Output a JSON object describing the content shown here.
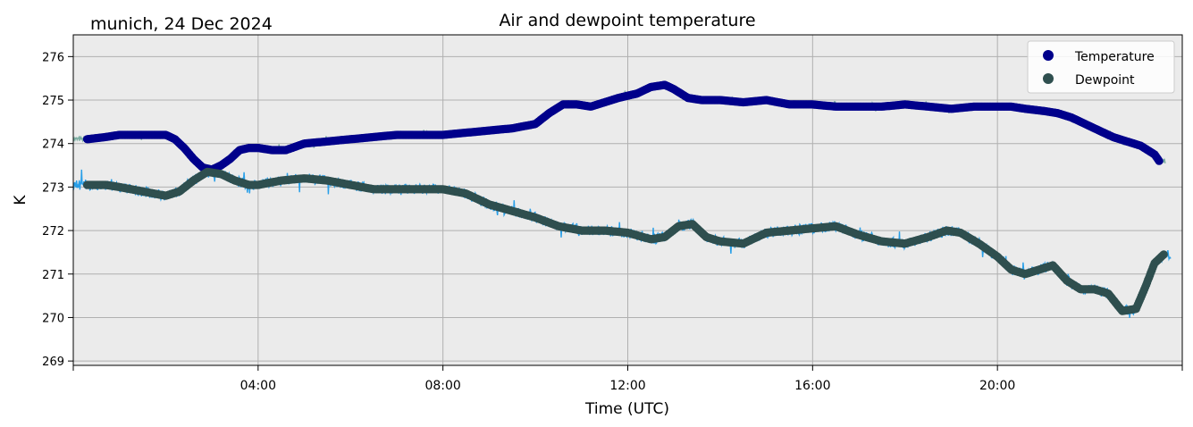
{
  "chart_data": {
    "type": "line",
    "title": "Air and dewpoint temperature",
    "subtitle": "munich, 24 Dec 2024",
    "xlabel": "Time (UTC)",
    "ylabel": "K",
    "x_unit": "hours (UTC)",
    "xlim": [
      0,
      24
    ],
    "ylim": [
      268.9,
      276.5
    ],
    "x_ticks": [
      {
        "value": 4,
        "label": "04:00"
      },
      {
        "value": 8,
        "label": "08:00"
      },
      {
        "value": 12,
        "label": "12:00"
      },
      {
        "value": 16,
        "label": "16:00"
      },
      {
        "value": 20,
        "label": "20:00"
      }
    ],
    "y_ticks": [
      269,
      270,
      271,
      272,
      273,
      274,
      275,
      276
    ],
    "grid": true,
    "legend": "top-right",
    "series": [
      {
        "name": "Temperature",
        "color": "#00008b",
        "raw_color": "#5f9e8f",
        "x": [
          0.3,
          0.7,
          1.0,
          1.5,
          2.0,
          2.2,
          2.4,
          2.6,
          2.8,
          3.0,
          3.2,
          3.4,
          3.6,
          3.8,
          4.0,
          4.3,
          4.6,
          5.0,
          5.5,
          6.0,
          6.5,
          7.0,
          7.5,
          8.0,
          8.5,
          9.0,
          9.5,
          10.0,
          10.3,
          10.6,
          10.9,
          11.2,
          11.5,
          11.8,
          12.2,
          12.5,
          12.8,
          13.0,
          13.3,
          13.6,
          14.0,
          14.5,
          15.0,
          15.5,
          16.0,
          16.5,
          17.0,
          17.5,
          18.0,
          18.5,
          19.0,
          19.5,
          20.0,
          20.3,
          20.6,
          21.0,
          21.3,
          21.6,
          21.9,
          22.2,
          22.5,
          22.8,
          23.1,
          23.4,
          23.5
        ],
        "y": [
          274.1,
          274.15,
          274.2,
          274.2,
          274.2,
          274.1,
          273.9,
          273.65,
          273.45,
          273.4,
          273.5,
          273.65,
          273.85,
          273.9,
          273.9,
          273.85,
          273.85,
          274.0,
          274.05,
          274.1,
          274.15,
          274.2,
          274.2,
          274.2,
          274.25,
          274.3,
          274.35,
          274.45,
          274.7,
          274.9,
          274.9,
          274.85,
          274.95,
          275.05,
          275.15,
          275.3,
          275.35,
          275.25,
          275.05,
          275.0,
          275.0,
          274.95,
          275.0,
          274.9,
          274.9,
          274.85,
          274.85,
          274.85,
          274.9,
          274.85,
          274.8,
          274.85,
          274.85,
          274.85,
          274.8,
          274.75,
          274.7,
          274.6,
          274.45,
          274.3,
          274.15,
          274.05,
          273.95,
          273.75,
          273.6
        ]
      },
      {
        "name": "Dewpoint",
        "color": "#2f4f4f",
        "raw_color": "#1e9be8",
        "x": [
          0.3,
          0.7,
          1.0,
          1.5,
          2.0,
          2.3,
          2.6,
          2.9,
          3.2,
          3.5,
          3.8,
          4.0,
          4.5,
          5.0,
          5.5,
          6.0,
          6.5,
          7.0,
          7.5,
          8.0,
          8.5,
          9.0,
          9.5,
          10.0,
          10.5,
          11.0,
          11.5,
          12.0,
          12.5,
          12.8,
          13.1,
          13.4,
          13.7,
          14.0,
          14.5,
          15.0,
          15.5,
          16.0,
          16.5,
          17.0,
          17.5,
          18.0,
          18.5,
          18.9,
          19.2,
          19.6,
          20.0,
          20.3,
          20.6,
          20.9,
          21.2,
          21.5,
          21.8,
          22.1,
          22.4,
          22.7,
          23.0,
          23.2,
          23.4,
          23.6
        ],
        "y": [
          273.05,
          273.05,
          273.0,
          272.9,
          272.8,
          272.9,
          273.15,
          273.35,
          273.3,
          273.15,
          273.05,
          273.05,
          273.15,
          273.2,
          273.15,
          273.05,
          272.95,
          272.95,
          272.95,
          272.95,
          272.85,
          272.6,
          272.45,
          272.3,
          272.1,
          272.0,
          272.0,
          271.95,
          271.8,
          271.85,
          272.1,
          272.15,
          271.85,
          271.75,
          271.7,
          271.95,
          272.0,
          272.05,
          272.1,
          271.9,
          271.75,
          271.7,
          271.85,
          272.0,
          271.95,
          271.7,
          271.4,
          271.1,
          271.0,
          271.1,
          271.2,
          270.85,
          270.65,
          270.65,
          270.55,
          270.15,
          270.2,
          270.7,
          271.25,
          271.45
        ]
      }
    ]
  }
}
